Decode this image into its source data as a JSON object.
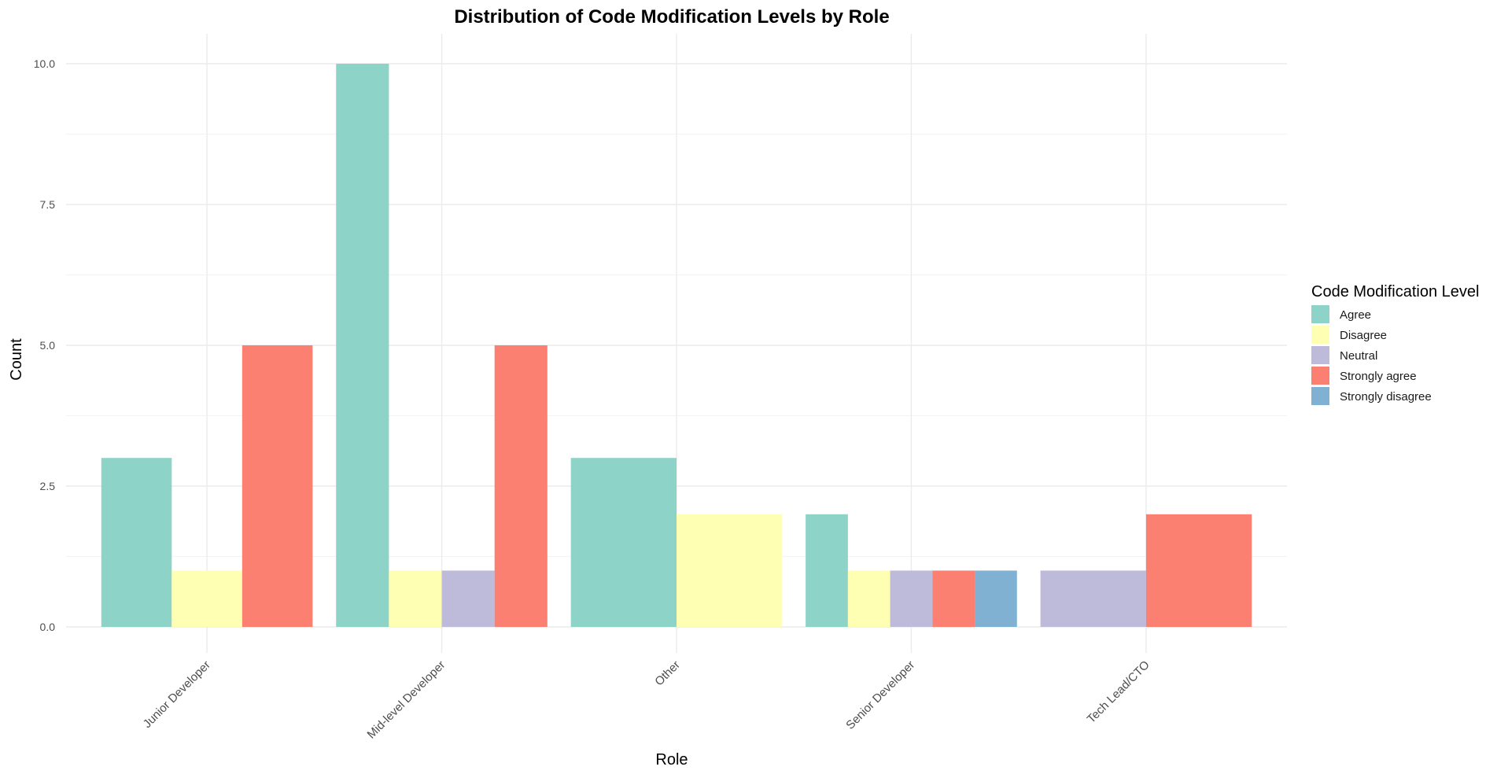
{
  "chart_data": {
    "type": "bar",
    "title": "Distribution of Code Modification Levels by Role",
    "xlabel": "Role",
    "ylabel": "Count",
    "ylim": [
      0,
      10.5
    ],
    "yticks": [
      "0.0",
      "2.5",
      "5.0",
      "7.5",
      "10.0"
    ],
    "grid": true,
    "legend_position": "right",
    "legend_title": "Code Modification Level",
    "categories": [
      "Junior Developer",
      "Mid-level Developer",
      "Other",
      "Senior Developer",
      "Tech Lead/CTO"
    ],
    "series": [
      {
        "name": "Agree",
        "color": "#8DD3C7",
        "values": [
          3,
          10,
          3,
          2,
          0
        ]
      },
      {
        "name": "Disagree",
        "color": "#FFFFB3",
        "values": [
          1,
          1,
          2,
          1,
          0
        ]
      },
      {
        "name": "Neutral",
        "color": "#BEBADA",
        "values": [
          0,
          1,
          0,
          1,
          1
        ]
      },
      {
        "name": "Strongly agree",
        "color": "#FB8072",
        "values": [
          5,
          5,
          0,
          1,
          2
        ]
      },
      {
        "name": "Strongly disagree",
        "color": "#80B1D3",
        "values": [
          0,
          0,
          0,
          1,
          0
        ]
      }
    ]
  }
}
